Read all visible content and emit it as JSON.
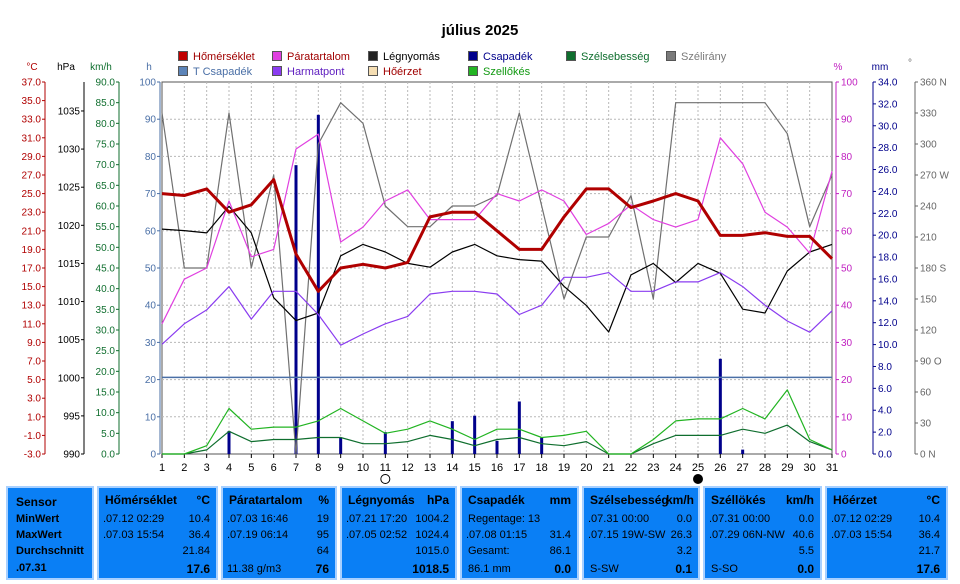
{
  "title": "július 2025",
  "chart_data": {
    "type": "line",
    "x": [
      1,
      2,
      3,
      4,
      5,
      6,
      7,
      8,
      9,
      10,
      11,
      12,
      13,
      14,
      15,
      16,
      17,
      18,
      19,
      20,
      21,
      22,
      23,
      24,
      25,
      26,
      27,
      28,
      29,
      30,
      31
    ],
    "x_ticks": [
      "1",
      "2",
      "3",
      "4",
      "5",
      "6",
      "7",
      "8",
      "9",
      "10",
      "11",
      "12",
      "13",
      "14",
      "15",
      "16",
      "17",
      "18",
      "19",
      "20",
      "21",
      "22",
      "23",
      "24",
      "25",
      "26",
      "27",
      "28",
      "29",
      "30",
      "31"
    ],
    "axes": {
      "temp_c": {
        "unit": "°C",
        "ticks": [
          "37.0",
          "35.0",
          "33.0",
          "31.0",
          "29.0",
          "27.0",
          "25.0",
          "23.0",
          "21.0",
          "19.0",
          "17.0",
          "15.0",
          "13.0",
          "11.0",
          "9.0",
          "7.0",
          "5.0",
          "3.0",
          "1.0",
          "-1.0",
          "-3.0"
        ],
        "range": [
          -3,
          37
        ]
      },
      "pressure_hpa": {
        "unit": "hPa",
        "ticks": [
          "1035",
          "1030",
          "1025",
          "1020",
          "1015",
          "1010",
          "1005",
          "1000",
          "995",
          "990"
        ],
        "range": [
          990,
          1038.8
        ]
      },
      "wind_kmh": {
        "unit": "km/h",
        "ticks": [
          "90.0",
          "85.0",
          "80.0",
          "75.0",
          "70.0",
          "65.0",
          "60.0",
          "55.0",
          "50.0",
          "45.0",
          "40.0",
          "35.0",
          "30.0",
          "25.0",
          "20.0",
          "15.0",
          "10.0",
          "5.0",
          "0.0"
        ],
        "range": [
          0,
          90
        ]
      },
      "hours_h": {
        "unit": "h",
        "ticks": [
          "100",
          "90",
          "80",
          "70",
          "60",
          "50",
          "40",
          "30",
          "20",
          "10",
          "0"
        ],
        "range": [
          0,
          100
        ]
      },
      "humidity_pct": {
        "unit": "%",
        "ticks": [
          "100",
          "90",
          "80",
          "70",
          "60",
          "50",
          "40",
          "30",
          "20",
          "10",
          "0"
        ],
        "range": [
          0,
          100
        ]
      },
      "rain_mm": {
        "unit": "mm",
        "ticks": [
          "34.0",
          "32.0",
          "30.0",
          "28.0",
          "26.0",
          "24.0",
          "22.0",
          "20.0",
          "18.0",
          "16.0",
          "14.0",
          "12.0",
          "10.0",
          "8.0",
          "6.0",
          "4.0",
          "2.0",
          "0.0"
        ],
        "range": [
          0,
          34
        ]
      },
      "direction_deg": {
        "unit": "°",
        "ticks": [
          "360 N",
          "330",
          "300",
          "270 W",
          "240",
          "210",
          "180 S",
          "150",
          "120",
          "90 O",
          "60",
          "30",
          "0 N"
        ],
        "range": [
          0,
          360
        ]
      }
    },
    "series": [
      {
        "name": "Hőmérséklet",
        "color": "#b00000",
        "axis": "temp_c",
        "width": 3,
        "values": [
          25,
          24.8,
          25.5,
          23,
          23.8,
          26.5,
          18.5,
          14.5,
          17,
          17.4,
          17,
          17.6,
          22.5,
          23,
          23,
          21,
          19,
          19,
          22.5,
          25.5,
          25.5,
          23.5,
          24.2,
          25,
          24.2,
          20.5,
          20.5,
          20.8,
          20.4,
          20.4,
          18
        ]
      },
      {
        "name": "Páratartalom",
        "color": "#e040e0",
        "axis": "humidity_pct",
        "width": 1.2,
        "values": [
          35,
          47,
          50,
          68,
          53,
          55,
          82,
          86,
          57,
          61,
          68,
          71,
          63,
          63,
          63,
          70,
          68,
          71,
          68,
          59,
          62,
          67,
          63,
          61,
          63,
          85,
          78,
          65,
          61,
          54,
          76
        ]
      },
      {
        "name": "Légnyomás",
        "color": "#000000",
        "axis": "pressure_hpa",
        "width": 1.2,
        "values": [
          1019.5,
          1019.3,
          1019,
          1022.5,
          1019,
          1010.5,
          1007.5,
          1008.5,
          1016,
          1017.5,
          1016.5,
          1015,
          1014.5,
          1016.5,
          1017.5,
          1016,
          1015.5,
          1015.3,
          1012,
          1009.5,
          1006,
          1013.5,
          1015,
          1012.5,
          1015,
          1013.7,
          1009,
          1008.5,
          1014,
          1016.5,
          1017.5
        ]
      },
      {
        "name": "T Csapadék",
        "color": "#4a6fa6",
        "axis": "rain_mm",
        "width": 1.5,
        "values": [
          7,
          7,
          7,
          7,
          7,
          7,
          7,
          7,
          7,
          7,
          7,
          7,
          7,
          7,
          7,
          7,
          7,
          7,
          7,
          7,
          7,
          7,
          7,
          7,
          7,
          7,
          7,
          7,
          7,
          7,
          7
        ]
      },
      {
        "name": "Harmatpont",
        "color": "#8a3cf0",
        "axis": "temp_c",
        "width": 1.2,
        "values": [
          8.8,
          11,
          12.5,
          15,
          11.5,
          14.5,
          14.5,
          12,
          8.7,
          9.9,
          11,
          11.8,
          14.2,
          14.5,
          14.5,
          14.2,
          12,
          13,
          16,
          16,
          16.5,
          14.5,
          14.5,
          15.5,
          15.5,
          16.5,
          15,
          13,
          11.3,
          10.1,
          12.4
        ]
      },
      {
        "name": "Szélsebesség",
        "color": "#0f6e2e",
        "axis": "wind_kmh",
        "width": 1.2,
        "values": [
          0,
          0,
          1,
          5.5,
          3,
          3.5,
          3.5,
          4,
          4,
          2.5,
          2.5,
          3,
          4.5,
          3.5,
          2,
          3.5,
          4,
          2.5,
          2,
          3,
          0,
          0,
          2.5,
          4.5,
          4.5,
          4.5,
          6,
          5,
          7,
          3,
          1
        ]
      },
      {
        "name": "Szélirány",
        "color": "#707070",
        "axis": "direction_deg",
        "width": 1.2,
        "values": [
          330,
          180,
          180,
          330,
          180,
          270,
          0,
          300,
          340,
          320,
          240,
          220,
          220,
          240,
          240,
          250,
          330,
          240,
          150,
          210,
          210,
          250,
          150,
          340,
          340,
          340,
          340,
          340,
          310,
          220,
          270
        ]
      },
      {
        "name": "Szellőkés",
        "color": "#22b422",
        "axis": "wind_kmh",
        "width": 1.2,
        "values": [
          0,
          0,
          2,
          11,
          6,
          6.5,
          6.5,
          8,
          11,
          8,
          5,
          6,
          8,
          6,
          3.5,
          6,
          6,
          4,
          4.5,
          5.5,
          0,
          0,
          3.5,
          8,
          8.5,
          8.5,
          11,
          8.5,
          15.5,
          3.5,
          1
        ]
      }
    ],
    "bars": {
      "name": "Csapadék",
      "color": "#00008b",
      "axis": "rain_mm",
      "x": [
        4,
        7,
        8,
        9,
        11,
        14,
        15,
        16,
        17,
        18,
        26,
        27
      ],
      "values": [
        2.1,
        26.4,
        31.0,
        1.5,
        2.0,
        3.0,
        3.5,
        1.2,
        4.8,
        1.5,
        8.7,
        0.4
      ]
    },
    "moon_phases": [
      {
        "day": 11,
        "phase": "full"
      },
      {
        "day": 25,
        "phase": "new"
      }
    ]
  },
  "legend": [
    {
      "label": "Hőmérséklet",
      "color": "#c00000"
    },
    {
      "label": "Páratartalom",
      "color": "#e040e0"
    },
    {
      "label": "Légnyomás",
      "color": "#222222"
    },
    {
      "label": "Csapadék",
      "color": "#00008b"
    },
    {
      "label": "Szélsebesség",
      "color": "#0f6e2e"
    },
    {
      "label": "Szélirány",
      "color": "#7a7a7a"
    },
    {
      "label": "T Csapadék",
      "color": "#5c84b8"
    },
    {
      "label": "Harmatpont",
      "color": "#8a3cf0"
    },
    {
      "label": "Hőérzet",
      "color": "#f5deb3"
    },
    {
      "label": "Szellőkés",
      "color": "#22b422"
    }
  ],
  "stats": {
    "row_labels": {
      "title": "Sensor",
      "min": "MinWert",
      "max": "MaxWert",
      "avg": "Durchschnitt",
      "date": ".07.31"
    },
    "temp": {
      "title": "Hőmérséklet",
      "unit": "°C",
      "min_time": ".07.12  02:29",
      "min_val": "10.4",
      "max_time": ".07.03  15:54",
      "max_val": "36.4",
      "avg": "21.84",
      "current": "17.6"
    },
    "humidity": {
      "title": "Páratartalom",
      "unit": "%",
      "min_time": ".07.03  16:46",
      "min_val": "19",
      "max_time": ".07.19  06:14",
      "max_val": "95",
      "avg": "64",
      "extra": "11.38 g/m3",
      "current": "76"
    },
    "pressure": {
      "title": "Légnyomás",
      "unit": "hPa",
      "min_time": ".07.21  17:20",
      "min_val": "1004.2",
      "max_time": ".07.05  02:52",
      "max_val": "1024.4",
      "avg": "1015.0",
      "current": "1018.5"
    },
    "rain": {
      "title": "Csapadék",
      "unit": "mm",
      "rain_days": "Regentage: 13",
      "max_time": ".07.08  01:15",
      "max_val": "31.4",
      "gesamt_label": "Gesamt:",
      "gesamt_val": "86.1",
      "extra": "86.1 mm",
      "current": "0.0"
    },
    "wind": {
      "title": "Szélsebesség",
      "unit": "km/h",
      "min_time": ".07.31  00:00",
      "min_val": "0.0",
      "max_time": ".07.15  19W-SW",
      "max_val": "26.3",
      "avg": "3.2",
      "dir": "S-SW",
      "current": "0.1"
    },
    "gust": {
      "title": "Széllökés",
      "unit": "km/h",
      "min_time": ".07.31  00:00",
      "min_val": "0.0",
      "max_time": ".07.29  06N-NW",
      "max_val": "40.6",
      "avg": "5.5",
      "dir": "S-SO",
      "current": "0.0"
    },
    "feels": {
      "title": "Hőérzet",
      "unit": "°C",
      "min_time": ".07.12  02:29",
      "min_val": "10.4",
      "max_time": ".07.03  15:54",
      "max_val": "36.4",
      "avg": "21.7",
      "current": "17.6"
    }
  }
}
